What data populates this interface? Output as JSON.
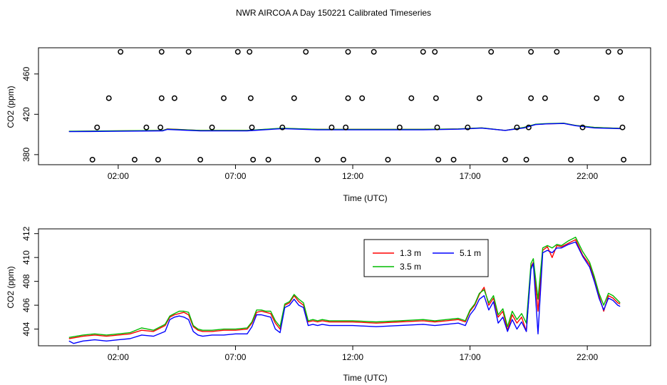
{
  "title": "NWR AIRCOA A  Day 150221  Calibrated Timeseries",
  "colors": {
    "h13": "#ff0000",
    "h35": "#00bb00",
    "h51": "#0000ff",
    "axis": "#000000"
  },
  "chart_data": [
    {
      "type": "scatter",
      "panel": "top",
      "xlabel": "Time (UTC)",
      "ylabel": "CO2 (ppm)",
      "xlim": [
        -1.4,
        24.7
      ],
      "ylim": [
        370,
        486
      ],
      "x_ticks": [
        2,
        7,
        12,
        17,
        22
      ],
      "x_tick_labels": [
        "02:00",
        "07:00",
        "12:00",
        "17:00",
        "22:00"
      ],
      "y_ticks": [
        380,
        420,
        460
      ],
      "y_tick_labels": [
        "380",
        "420",
        "460"
      ],
      "standards": [
        {
          "x": 0.9,
          "y": 375
        },
        {
          "x": 1.1,
          "y": 407
        },
        {
          "x": 1.6,
          "y": 436
        },
        {
          "x": 2.1,
          "y": 482
        },
        {
          "x": 2.7,
          "y": 375
        },
        {
          "x": 3.2,
          "y": 407
        },
        {
          "x": 3.7,
          "y": 375
        },
        {
          "x": 3.8,
          "y": 407
        },
        {
          "x": 3.85,
          "y": 436
        },
        {
          "x": 3.85,
          "y": 482
        },
        {
          "x": 4.4,
          "y": 436
        },
        {
          "x": 5.0,
          "y": 482
        },
        {
          "x": 5.5,
          "y": 375
        },
        {
          "x": 6.0,
          "y": 407
        },
        {
          "x": 6.5,
          "y": 436
        },
        {
          "x": 7.1,
          "y": 482
        },
        {
          "x": 7.6,
          "y": 482
        },
        {
          "x": 7.65,
          "y": 436
        },
        {
          "x": 7.7,
          "y": 407
        },
        {
          "x": 7.75,
          "y": 375
        },
        {
          "x": 8.4,
          "y": 375
        },
        {
          "x": 9.0,
          "y": 407
        },
        {
          "x": 9.5,
          "y": 436
        },
        {
          "x": 10.0,
          "y": 482
        },
        {
          "x": 10.5,
          "y": 375
        },
        {
          "x": 11.1,
          "y": 407
        },
        {
          "x": 11.6,
          "y": 375
        },
        {
          "x": 11.7,
          "y": 407
        },
        {
          "x": 11.8,
          "y": 436
        },
        {
          "x": 11.8,
          "y": 482
        },
        {
          "x": 12.4,
          "y": 436
        },
        {
          "x": 12.9,
          "y": 482
        },
        {
          "x": 13.5,
          "y": 375
        },
        {
          "x": 14.0,
          "y": 407
        },
        {
          "x": 14.5,
          "y": 436
        },
        {
          "x": 15.0,
          "y": 482
        },
        {
          "x": 15.5,
          "y": 482
        },
        {
          "x": 15.55,
          "y": 436
        },
        {
          "x": 15.6,
          "y": 407
        },
        {
          "x": 15.65,
          "y": 375
        },
        {
          "x": 16.3,
          "y": 375
        },
        {
          "x": 16.9,
          "y": 407
        },
        {
          "x": 17.4,
          "y": 436
        },
        {
          "x": 17.9,
          "y": 482
        },
        {
          "x": 18.5,
          "y": 375
        },
        {
          "x": 19.0,
          "y": 407
        },
        {
          "x": 19.4,
          "y": 375
        },
        {
          "x": 19.5,
          "y": 407
        },
        {
          "x": 19.6,
          "y": 436
        },
        {
          "x": 19.6,
          "y": 482
        },
        {
          "x": 20.2,
          "y": 436
        },
        {
          "x": 20.7,
          "y": 482
        },
        {
          "x": 21.3,
          "y": 375
        },
        {
          "x": 21.8,
          "y": 407
        },
        {
          "x": 22.4,
          "y": 436
        },
        {
          "x": 22.9,
          "y": 482
        },
        {
          "x": 23.4,
          "y": 482
        },
        {
          "x": 23.45,
          "y": 436
        },
        {
          "x": 23.5,
          "y": 407
        },
        {
          "x": 23.55,
          "y": 375
        }
      ],
      "series": [
        {
          "color_key": "h13",
          "x": [
            -0.1,
            2,
            3.9,
            4.1,
            5.5,
            7.5,
            9.0,
            10.5,
            12,
            15,
            16.5,
            17.5,
            18.5,
            19.3,
            19.8,
            20.3,
            21.0,
            21.5,
            22.3,
            23.4
          ],
          "y": [
            403,
            403.5,
            404,
            405.5,
            404,
            404,
            406,
            405,
            405,
            405,
            405.5,
            406.5,
            404,
            407,
            410,
            410.5,
            411,
            409,
            407,
            406
          ]
        },
        {
          "color_key": "h35",
          "x": [
            -0.1,
            2,
            3.9,
            4.1,
            5.5,
            7.5,
            9.0,
            10.5,
            12,
            15,
            16.5,
            17.5,
            18.5,
            19.3,
            19.8,
            20.3,
            21.0,
            21.5,
            22.3,
            23.4
          ],
          "y": [
            403.2,
            403.6,
            404,
            405.3,
            404,
            404,
            406.2,
            405,
            405,
            405,
            405.5,
            406.6,
            404,
            407,
            410.2,
            410.8,
            411.2,
            409,
            407,
            406
          ]
        },
        {
          "color_key": "h51",
          "x": [
            -0.1,
            2,
            3.9,
            4.1,
            5.5,
            7.5,
            9.0,
            10.5,
            12,
            15,
            16.5,
            17.5,
            18.5,
            19.3,
            19.8,
            20.3,
            21.0,
            21.5,
            22.3,
            23.4
          ],
          "y": [
            402.8,
            403.2,
            403.6,
            405,
            403.5,
            403.6,
            405.8,
            404.6,
            404.6,
            404.6,
            405.2,
            406.3,
            404,
            406.5,
            409.8,
            410.5,
            410.9,
            408.7,
            406.5,
            405.8
          ]
        }
      ]
    },
    {
      "type": "line",
      "panel": "bottom",
      "xlabel": "Time (UTC)",
      "ylabel": "CO2 (ppm)",
      "xlim": [
        -1.4,
        24.7
      ],
      "ylim": [
        402.6,
        412.4
      ],
      "x_ticks": [
        2,
        7,
        12,
        17,
        22
      ],
      "x_tick_labels": [
        "02:00",
        "07:00",
        "12:00",
        "17:00",
        "22:00"
      ],
      "y_ticks": [
        404,
        406,
        408,
        410,
        412
      ],
      "y_tick_labels": [
        "404",
        "406",
        "408",
        "410",
        "412"
      ],
      "legend": {
        "position": "top-right",
        "labels": [
          "1.3 m",
          "3.5 m",
          "5.1 m"
        ]
      },
      "series": [
        {
          "name": "1.3 m",
          "color_key": "h13",
          "x": [
            -0.1,
            0.5,
            1.0,
            1.5,
            2.0,
            2.5,
            3.0,
            3.5,
            4.0,
            4.2,
            4.4,
            4.6,
            4.8,
            5.0,
            5.2,
            5.4,
            5.6,
            6.0,
            6.5,
            7.0,
            7.5,
            7.7,
            7.9,
            8.1,
            8.3,
            8.5,
            8.7,
            8.9,
            9.1,
            9.3,
            9.5,
            9.7,
            9.9,
            10.1,
            10.3,
            10.5,
            10.7,
            11.0,
            11.5,
            12.0,
            13.0,
            14.0,
            15.0,
            15.5,
            16.0,
            16.5,
            16.8,
            17.0,
            17.2,
            17.4,
            17.6,
            17.8,
            18.0,
            18.2,
            18.4,
            18.6,
            18.8,
            19.0,
            19.2,
            19.4,
            19.6,
            19.7,
            19.9,
            20.1,
            20.3,
            20.5,
            20.7,
            20.9,
            21.2,
            21.5,
            21.8,
            22.1,
            22.3,
            22.5,
            22.7,
            22.9,
            23.1,
            23.3,
            23.4
          ],
          "y": [
            403.2,
            403.4,
            403.5,
            403.4,
            403.5,
            403.6,
            403.9,
            403.8,
            404.3,
            405.0,
            405.2,
            405.3,
            405.4,
            405.2,
            404.2,
            403.9,
            403.8,
            403.8,
            403.9,
            403.9,
            404.0,
            404.5,
            405.4,
            405.5,
            405.4,
            405.3,
            404.5,
            404.0,
            406.0,
            406.2,
            406.8,
            406.3,
            406.0,
            404.6,
            404.7,
            404.6,
            404.7,
            404.6,
            404.6,
            404.6,
            404.5,
            404.6,
            404.7,
            404.6,
            404.7,
            404.8,
            404.6,
            405.5,
            406.0,
            406.9,
            407.5,
            406.0,
            406.6,
            405.0,
            405.5,
            403.9,
            405.2,
            404.5,
            405.0,
            403.8,
            409.2,
            409.6,
            405.5,
            410.6,
            410.9,
            410.0,
            411.0,
            410.9,
            411.2,
            411.5,
            410.2,
            409.4,
            408.2,
            406.8,
            405.5,
            406.8,
            406.6,
            406.2,
            406.1
          ]
        },
        {
          "name": "3.5 m",
          "color_key": "h35",
          "x": [
            -0.1,
            0.5,
            1.0,
            1.5,
            2.0,
            2.5,
            3.0,
            3.5,
            4.0,
            4.2,
            4.4,
            4.6,
            4.8,
            5.0,
            5.2,
            5.4,
            5.6,
            6.0,
            6.5,
            7.0,
            7.5,
            7.7,
            7.9,
            8.1,
            8.3,
            8.5,
            8.7,
            8.9,
            9.1,
            9.3,
            9.5,
            9.7,
            9.9,
            10.1,
            10.3,
            10.5,
            10.7,
            11.0,
            11.5,
            12.0,
            13.0,
            14.0,
            15.0,
            15.5,
            16.0,
            16.5,
            16.8,
            17.0,
            17.2,
            17.4,
            17.6,
            17.8,
            18.0,
            18.2,
            18.4,
            18.6,
            18.8,
            19.0,
            19.2,
            19.4,
            19.6,
            19.7,
            19.9,
            20.1,
            20.3,
            20.5,
            20.7,
            20.9,
            21.2,
            21.5,
            21.8,
            22.1,
            22.3,
            22.5,
            22.7,
            22.9,
            23.1,
            23.3,
            23.4
          ],
          "y": [
            403.3,
            403.5,
            403.6,
            403.5,
            403.6,
            403.7,
            404.1,
            403.9,
            404.4,
            405.1,
            405.3,
            405.5,
            405.5,
            405.4,
            404.3,
            404.0,
            403.9,
            403.9,
            404.0,
            404.0,
            404.1,
            404.6,
            405.6,
            405.6,
            405.5,
            405.5,
            404.7,
            404.2,
            406.1,
            406.3,
            406.9,
            406.5,
            406.2,
            404.7,
            404.8,
            404.7,
            404.8,
            404.7,
            404.7,
            404.7,
            404.6,
            404.7,
            404.8,
            404.7,
            404.8,
            404.9,
            404.7,
            405.6,
            406.1,
            407.0,
            407.3,
            406.2,
            406.8,
            405.2,
            405.7,
            404.2,
            405.5,
            404.8,
            405.3,
            404.5,
            409.5,
            409.9,
            406.5,
            410.8,
            411.0,
            410.8,
            411.1,
            411.0,
            411.4,
            411.7,
            410.5,
            409.6,
            408.4,
            407.0,
            406.0,
            407.0,
            406.8,
            406.4,
            406.2
          ]
        },
        {
          "name": "5.1 m",
          "color_key": "h51",
          "x": [
            -0.1,
            0.1,
            0.5,
            1.0,
            1.5,
            2.0,
            2.5,
            3.0,
            3.5,
            4.0,
            4.2,
            4.4,
            4.6,
            4.8,
            5.0,
            5.2,
            5.4,
            5.6,
            6.0,
            6.5,
            7.0,
            7.5,
            7.7,
            7.9,
            8.1,
            8.3,
            8.5,
            8.7,
            8.9,
            9.1,
            9.3,
            9.5,
            9.7,
            9.9,
            10.1,
            10.3,
            10.5,
            10.7,
            11.0,
            11.5,
            12.0,
            13.0,
            14.0,
            15.0,
            15.5,
            16.0,
            16.5,
            16.8,
            17.0,
            17.2,
            17.4,
            17.6,
            17.8,
            18.0,
            18.2,
            18.4,
            18.6,
            18.8,
            19.0,
            19.2,
            19.4,
            19.6,
            19.7,
            19.9,
            20.1,
            20.3,
            20.5,
            20.7,
            20.9,
            21.2,
            21.5,
            21.8,
            22.1,
            22.3,
            22.5,
            22.7,
            22.9,
            23.1,
            23.3,
            23.4
          ],
          "y": [
            403.0,
            402.8,
            403.0,
            403.1,
            403.0,
            403.1,
            403.2,
            403.5,
            403.4,
            403.8,
            404.8,
            405.0,
            405.1,
            405.0,
            404.8,
            403.8,
            403.5,
            403.4,
            403.5,
            403.5,
            403.6,
            403.6,
            404.2,
            405.2,
            405.2,
            405.1,
            405.0,
            404.0,
            403.7,
            405.8,
            406.0,
            406.5,
            406.0,
            405.8,
            404.3,
            404.4,
            404.3,
            404.4,
            404.3,
            404.3,
            404.3,
            404.2,
            404.3,
            404.4,
            404.3,
            404.4,
            404.5,
            404.3,
            405.2,
            405.7,
            406.5,
            406.8,
            405.6,
            406.3,
            404.5,
            405.0,
            403.8,
            404.8,
            404.0,
            404.6,
            403.8,
            409.0,
            409.5,
            403.6,
            410.4,
            410.6,
            410.4,
            410.8,
            410.8,
            411.1,
            411.3,
            410.1,
            409.2,
            408.0,
            406.6,
            405.6,
            406.6,
            406.4,
            406.0,
            405.9
          ]
        }
      ]
    }
  ]
}
